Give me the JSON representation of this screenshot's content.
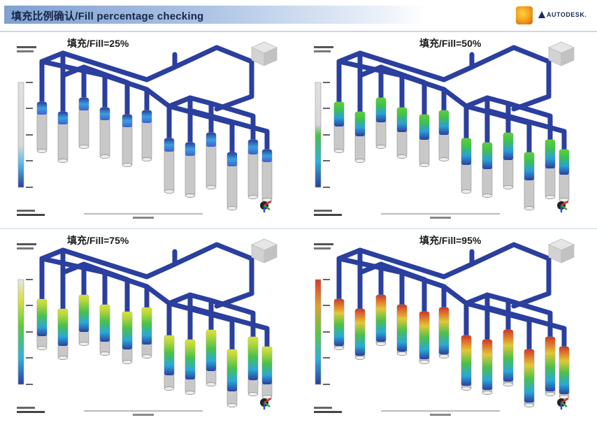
{
  "slide": {
    "title": "填充比例确认/Fill percentage checking",
    "logo_text": "AUTODESK.",
    "logo_icon": "autodesk-triangle-icon"
  },
  "panels": [
    {
      "label": "填充/Fill=25%",
      "fill": 0.25,
      "palette": "blue"
    },
    {
      "label": "填充/Fill=50%",
      "fill": 0.5,
      "palette": "green"
    },
    {
      "label": "填充/Fill=75%",
      "fill": 0.75,
      "palette": "spectrum"
    },
    {
      "label": "填充/Fill=95%",
      "fill": 0.95,
      "palette": "full"
    }
  ],
  "colors": {
    "runner": "#2a3f9e",
    "unfilled": "#c8c8c8",
    "title_bar": "#8ea9d4"
  }
}
